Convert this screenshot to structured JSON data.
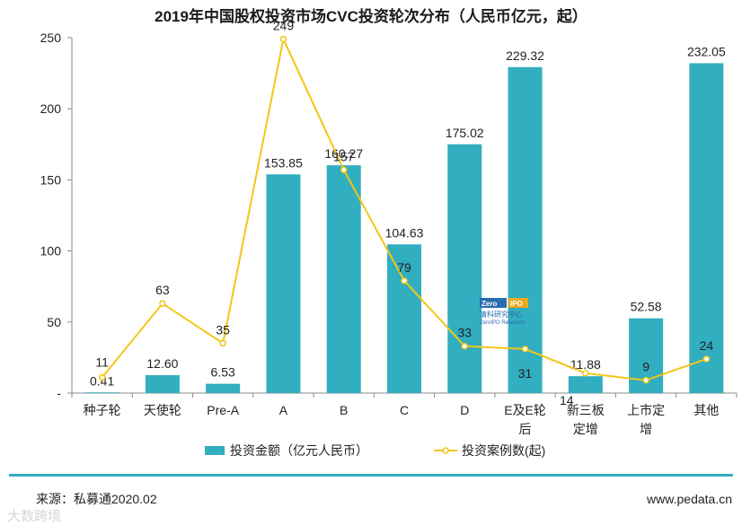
{
  "chart_data": {
    "type": "bar",
    "title": "2019年中国股权投资市场CVC投资轮次分布（人民币亿元，起）",
    "categories": [
      [
        "种子轮"
      ],
      [
        "天使轮"
      ],
      [
        "Pre-A"
      ],
      [
        "A"
      ],
      [
        "B"
      ],
      [
        "C"
      ],
      [
        "D"
      ],
      [
        "E及E轮",
        "后"
      ],
      [
        "新三板",
        "定增"
      ],
      [
        "上市定",
        "增"
      ],
      [
        "其他"
      ]
    ],
    "ylim": [
      0,
      250
    ],
    "yticks": [
      0,
      50,
      100,
      150,
      200,
      250
    ],
    "ytick_labels": [
      "-",
      "50",
      "100",
      "150",
      "200",
      "250"
    ],
    "series": [
      {
        "name": "投资金额（亿元人民币）",
        "type": "bar",
        "color": "#31aebf",
        "values": [
          0.41,
          12.6,
          6.53,
          153.85,
          160.27,
          104.63,
          175.02,
          229.32,
          11.88,
          52.58,
          232.05
        ],
        "labels": [
          "0.41",
          "12.60",
          "6.53",
          "153.85",
          "160.27",
          "104.63",
          "175.02",
          "229.32",
          "11.88",
          "52.58",
          "232.05"
        ]
      },
      {
        "name": "投资案例数(起)",
        "type": "line",
        "color": "#f3c617",
        "values": [
          11,
          63,
          35,
          249,
          157,
          79,
          33,
          31,
          14,
          9,
          24
        ],
        "labels": [
          "11",
          "63",
          "35",
          "249",
          "157",
          "79",
          "33",
          "31",
          "14",
          "9",
          "24"
        ]
      }
    ]
  },
  "footer": {
    "source": "来源：私募通2020.02",
    "website": "www.pedata.cn",
    "bar_color": "#31aebf"
  },
  "watermark": {
    "brand": "ZeroIPO",
    "logo_left": "Zero",
    "logo_right": "IPO",
    "name_cn": "清科研究中心",
    "name_en": "ZeroIPO Research",
    "corner_text": "大数跨境"
  }
}
